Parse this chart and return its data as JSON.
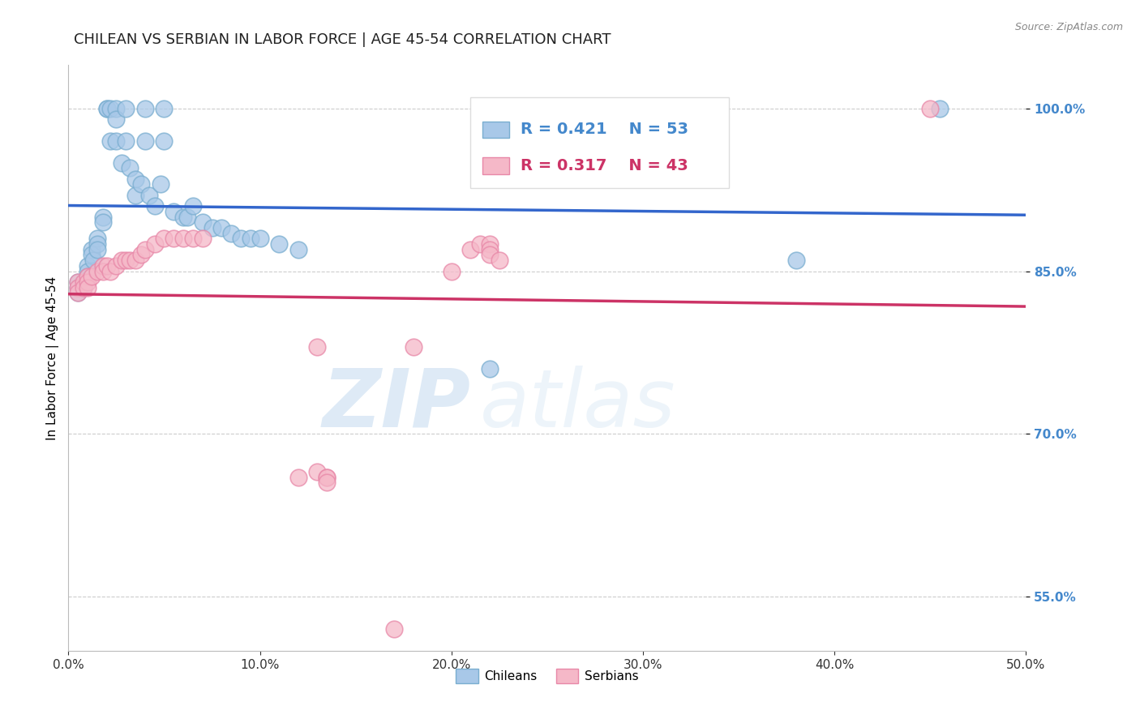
{
  "title": "CHILEAN VS SERBIAN IN LABOR FORCE | AGE 45-54 CORRELATION CHART",
  "source": "Source: ZipAtlas.com",
  "xlabel": "",
  "ylabel": "In Labor Force | Age 45-54",
  "xlim": [
    0.0,
    0.5
  ],
  "ylim": [
    0.5,
    1.04
  ],
  "yticks": [
    0.55,
    0.7,
    0.85,
    1.0
  ],
  "ytick_labels": [
    "55.0%",
    "70.0%",
    "85.0%",
    "100.0%"
  ],
  "xticks": [
    0.0,
    0.1,
    0.2,
    0.3,
    0.4,
    0.5
  ],
  "xtick_labels": [
    "0.0%",
    "10.0%",
    "20.0%",
    "30.0%",
    "40.0%",
    "50.0%"
  ],
  "chilean_color": "#a8c8e8",
  "chilean_edge_color": "#7aaed0",
  "serbian_color": "#f5b8c8",
  "serbian_edge_color": "#e888a8",
  "trend_blue": "#3366cc",
  "trend_pink": "#cc3366",
  "legend_R_blue": "R = 0.421",
  "legend_N_blue": "N = 53",
  "legend_R_pink": "R = 0.317",
  "legend_N_pink": "N = 43",
  "chilean_x": [
    0.005,
    0.005,
    0.005,
    0.008,
    0.008,
    0.01,
    0.01,
    0.01,
    0.012,
    0.012,
    0.013,
    0.015,
    0.015,
    0.015,
    0.018,
    0.018,
    0.02,
    0.02,
    0.022,
    0.022,
    0.025,
    0.025,
    0.025,
    0.028,
    0.03,
    0.03,
    0.032,
    0.035,
    0.035,
    0.038,
    0.04,
    0.04,
    0.042,
    0.045,
    0.048,
    0.05,
    0.05,
    0.055,
    0.06,
    0.062,
    0.065,
    0.07,
    0.075,
    0.08,
    0.085,
    0.09,
    0.095,
    0.1,
    0.11,
    0.12,
    0.22,
    0.38,
    0.455
  ],
  "chilean_y": [
    0.84,
    0.835,
    0.83,
    0.84,
    0.835,
    0.855,
    0.85,
    0.845,
    0.87,
    0.865,
    0.86,
    0.88,
    0.875,
    0.87,
    0.9,
    0.895,
    1.0,
    1.0,
    1.0,
    0.97,
    1.0,
    0.99,
    0.97,
    0.95,
    1.0,
    0.97,
    0.945,
    0.935,
    0.92,
    0.93,
    1.0,
    0.97,
    0.92,
    0.91,
    0.93,
    1.0,
    0.97,
    0.905,
    0.9,
    0.9,
    0.91,
    0.895,
    0.89,
    0.89,
    0.885,
    0.88,
    0.88,
    0.88,
    0.875,
    0.87,
    0.76,
    0.86,
    1.0
  ],
  "serbian_x": [
    0.005,
    0.005,
    0.005,
    0.008,
    0.008,
    0.01,
    0.01,
    0.01,
    0.012,
    0.015,
    0.018,
    0.018,
    0.02,
    0.022,
    0.025,
    0.028,
    0.03,
    0.032,
    0.035,
    0.038,
    0.04,
    0.045,
    0.05,
    0.055,
    0.06,
    0.065,
    0.07,
    0.12,
    0.13,
    0.135,
    0.18,
    0.2,
    0.21,
    0.215,
    0.22,
    0.22,
    0.22,
    0.225,
    0.17,
    0.45,
    0.13,
    0.135,
    0.135
  ],
  "serbian_y": [
    0.84,
    0.835,
    0.83,
    0.84,
    0.835,
    0.845,
    0.84,
    0.835,
    0.845,
    0.85,
    0.855,
    0.85,
    0.855,
    0.85,
    0.855,
    0.86,
    0.86,
    0.86,
    0.86,
    0.865,
    0.87,
    0.875,
    0.88,
    0.88,
    0.88,
    0.88,
    0.88,
    0.66,
    0.665,
    0.66,
    0.78,
    0.85,
    0.87,
    0.875,
    0.875,
    0.87,
    0.865,
    0.86,
    0.52,
    1.0,
    0.78,
    0.66,
    0.655
  ],
  "watermark_zip": "ZIP",
  "watermark_atlas": "atlas",
  "background_color": "#ffffff",
  "grid_color": "#cccccc",
  "title_fontsize": 13,
  "axis_label_fontsize": 11,
  "tick_fontsize": 11,
  "legend_fontsize": 14,
  "tick_color": "#4488cc"
}
